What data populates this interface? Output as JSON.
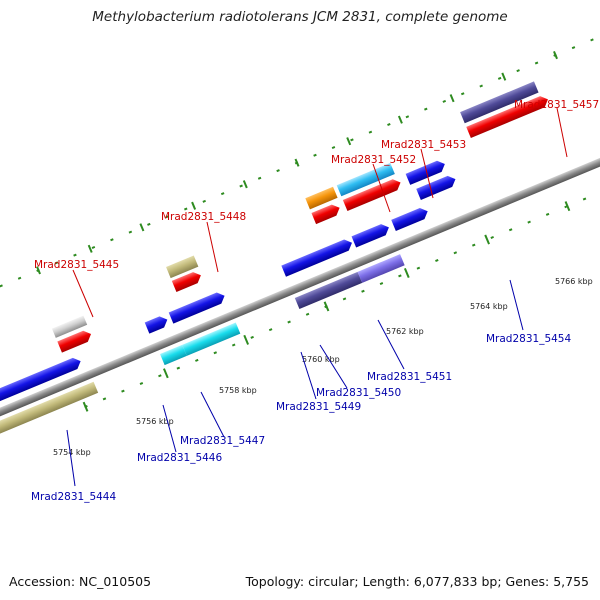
{
  "title": "Methylobacterium radiotolerans JCM 2831, complete genome",
  "accession": "Accession: NC_010505",
  "summary": "Topology: circular; Length: 6,077,833 bp; Genes: 5,755",
  "scale_ticks": [
    "5754 kbp",
    "5756 kbp",
    "5758 kbp",
    "5760 kbp",
    "5762 kbp",
    "5764 kbp",
    "5766 kbp"
  ],
  "gene_labels": {
    "g5444": "Mrad2831_5444",
    "g5445": "Mrad2831_5445",
    "g5446": "Mrad2831_5446",
    "g5447": "Mrad2831_5447",
    "g5448": "Mrad2831_5448",
    "g5449": "Mrad2831_5449",
    "g5450": "Mrad2831_5450",
    "g5451": "Mrad2831_5451",
    "g5452": "Mrad2831_5452",
    "g5453": "Mrad2831_5453",
    "g5454": "Mrad2831_5454",
    "g5457": "Mrad2831_5457"
  },
  "colors": {
    "top_label": "#cc0000",
    "bottom_label": "#0000aa",
    "backbone": "#888888",
    "dots": "#2e8b20"
  }
}
